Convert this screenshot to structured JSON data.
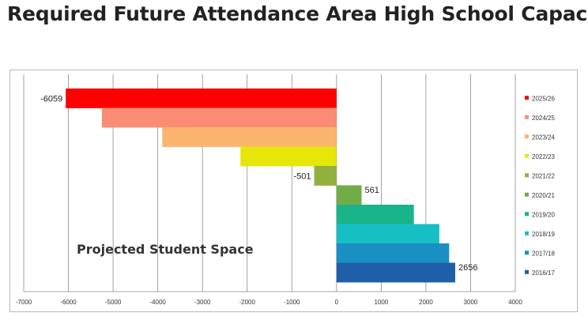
{
  "title": "Required Future Attendance Area High School Capacity",
  "chart_data": {
    "type": "bar",
    "orientation": "horizontal",
    "categories": [
      "2025/26",
      "2024/25",
      "2023/24",
      "2022/23",
      "2021/22",
      "2020/21",
      "2019/20",
      "2018/19",
      "2017/18",
      "2016/17"
    ],
    "values": [
      -6059,
      -5250,
      -3900,
      -2150,
      -501,
      561,
      1730,
      2300,
      2520,
      2656
    ],
    "colors": [
      "#ff0000",
      "#fa8c73",
      "#fbb46e",
      "#e6e60a",
      "#92b040",
      "#70ad47",
      "#19b48a",
      "#16bfc4",
      "#1a8fc4",
      "#1f5ea8"
    ],
    "data_labels": [
      {
        "category": "2025/26",
        "text": "-6059"
      },
      {
        "category": "2021/22",
        "text": "-501"
      },
      {
        "category": "2020/21",
        "text": "561"
      },
      {
        "category": "2016/17",
        "text": "2656"
      }
    ],
    "xlim": [
      -7000,
      4000
    ],
    "xticks": [
      -7000,
      -6000,
      -5000,
      -4000,
      -3000,
      -2000,
      -1000,
      0,
      1000,
      2000,
      3000,
      4000
    ],
    "annotation": "Projected Student Space",
    "legend_position": "right",
    "grid": true
  }
}
